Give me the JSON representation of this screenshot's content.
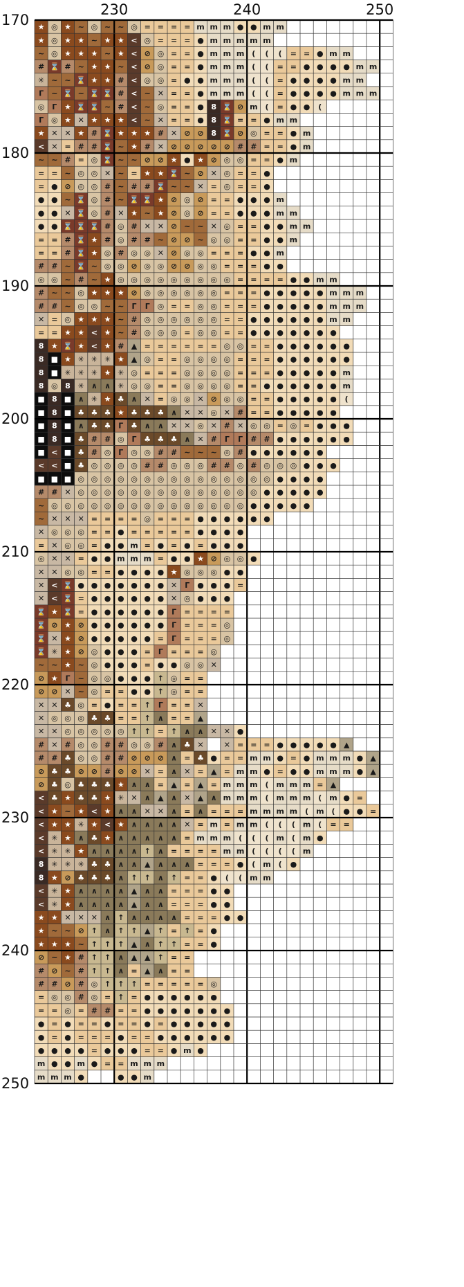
{
  "pattern": {
    "col_labels": [
      "230",
      "240",
      "250"
    ],
    "row_labels": [
      "170",
      "180",
      "190",
      "200",
      "210",
      "220",
      "230",
      "240",
      "250"
    ],
    "col_start": 224,
    "row_start": 170,
    "cols": 27,
    "rows": 80,
    "palette": {
      "*": {
        "bg": "#8a4a1e",
        "sym": "★"
      },
      "@": {
        "bg": "#d8c4a4",
        "sym": "◎"
      },
      "~": {
        "bg": "#a06a3a",
        "sym": "∼"
      },
      "<": {
        "bg": "#5a3a2a",
        "sym": "<"
      },
      "=": {
        "bg": "#eac99a",
        "sym": "="
      },
      ".": {
        "bg": "#f2dcb8",
        "sym": "●"
      },
      "m": {
        "bg": "#e6dcc8",
        "sym": "m"
      },
      "(": {
        "bg": "#efe3cd",
        "sym": "("
      },
      "#": {
        "bg": "#b58a6a",
        "sym": "#"
      },
      "h": {
        "bg": "#7a3a2a",
        "sym": "⌛"
      },
      "s": {
        "bg": "#c9b49a",
        "sym": "✳"
      },
      "x": {
        "bg": "#c8b8a4",
        "sym": "✕"
      },
      "r": {
        "bg": "#b07a5a",
        "sym": "Γ"
      },
      "o": {
        "bg": "#c89a5a",
        "sym": "⊘"
      },
      "8": {
        "bg": "#3a2a24",
        "sym": "8"
      },
      "b": {
        "bg": "#0d0d0d",
        "sym": "■"
      },
      "c": {
        "bg": "#6b4a2a",
        "sym": "♣"
      },
      "^": {
        "bg": "#8a7a5a",
        "sym": "∧"
      },
      "A": {
        "bg": "#b0a48a",
        "sym": "▲"
      },
      "t": {
        "bg": "#c8b890",
        "sym": "↑"
      },
      "_": {
        "bg": "#ffffff",
        "sym": ""
      }
    },
    "grid": [
      "*@*~@~~@====mmm..mm",
      "*@**~**<@===.mmmmm",
      "~@***~*<o@==.mmm(((==.mm",
      "#h#~**~<o@==.mmm((==....mm",
      "s~~h**#<@@=..mmm((=....mm",
      "r~h~hh#<~x==.mmm((=....mmm",
      "@r*hh~#<~@==.8hom(=..(",
      "r@*x***<~x==.8h==.mm",
      "*xx*#h***#xoo8ho@==.m",
      "<x=##h~*#xooooo##==.m",
      "~~#=@h~~oo*.*o@@==.m",
      "==~@@x~=**h~ox@==.",
      "=.o@@#~##h~~x=@==.",
      "..~h@#~hh*o@o==...m",
      "..xh@#x*~*o@o==...mm",
      "..hhh#@#xxo~~x@==..mm",
      "==#h*#@##~oo~@@==..m",
      "==#h*@#@@xo@@===..m",
      "##~h~@@o@@oo@@===..",
      "@@~#~*@@@@@@@@@====..mm",
      "#~~@***o@@@@@@===.....mmm",
      "##~@@~~rr@==@@===.....mmm",
      "x=@***~#@@@@@@==......mm",
      "==**<*~#@@@=@@==.......",
      "8*h*<*#A======@@==......",
      "8b*sss*A@==@@@@===......",
      "8bsss*s@===@@@@===.....m",
      "8@8s^^s@@==@@@@==......m",
      "b8b^s*c^x=@@xo@@==.....(",
      "b8bccc*ccc^xx@x#==.....",
      "b8b^ccrc^^xx@x#x@@=@=...",
      "b8bc##@rccc^x#rr##......",
      "b<bc#@r@@##~~~@#......",
      "<<bc@@@@##@@@##@#@@@...",
      "bbb@@@@@@@@@@@@@@@....",
      "##x@@@@@@@@@@@@@@.....",
      "~@@@@@@@@@@@@@@@.....",
      "~xxx====@===......",
      "x@@@==.=====....",
      "=x@@=..m=.=.=...",
      "@xx=..mmm=..*o@@.",
      "xx@@==....*@@@..",
      "x<h.......xr...=",
      "x<h=......x@...",
      "h*h=......r====",
      "ho*o......r===@",
      "hx*o.....=r===@",
      "hs*o@...=r===@",
      "~~*~@...=..@@x",
      "o*r~@@...t@==",
      "oox~@==..t@==",
      "xxc@=.==tr==x",
      "x@@@cc==t^==A",
      "xx@@@@@tt=t^^xx.",
      "#x#@@##@@#^cx_x===.....A",
      "##c@@##ooo^=c.==mm.=.mmm.A",
      "occoo#oox=^x=A=mm.=..mmm.A",
      "oc@ccc*^^=A=A=mmm(mmm=A",
      "<c*cc*sx^A^xA^mmm(mmm(m.=",
      "<*~*<*^^xx^=^===mmmm(m(..=",
      "<**s*<*^^^^x=m=mm(((m(==",
      "<s*^c*^^^^^=mmm(((m(m.",
      "<ss*^^^^t^====mm((((m",
      "8ssscc^^A^^^===.(m(.",
      "8*occc^tt^t==.((mm",
      "<s*^^^^A^^===..",
      "<s*^^^^A^^===..",
      "**xxx^t^^^^===..",
      "*~~ot^ttAt=t=.",
      "***~tttA^tt==.",
      "o~*#tt^AAt==",
      "#o~#tt^=A^==",
      "##o#@ttt=====@",
      "=@@#@=t=......",
      "==@=##==.......",
      ".=.==.==.=.....",
      ".=.===.==......",
      "....=...==.m.",
      "m..m.==mmm",
      "mmm.__..m"
    ]
  }
}
